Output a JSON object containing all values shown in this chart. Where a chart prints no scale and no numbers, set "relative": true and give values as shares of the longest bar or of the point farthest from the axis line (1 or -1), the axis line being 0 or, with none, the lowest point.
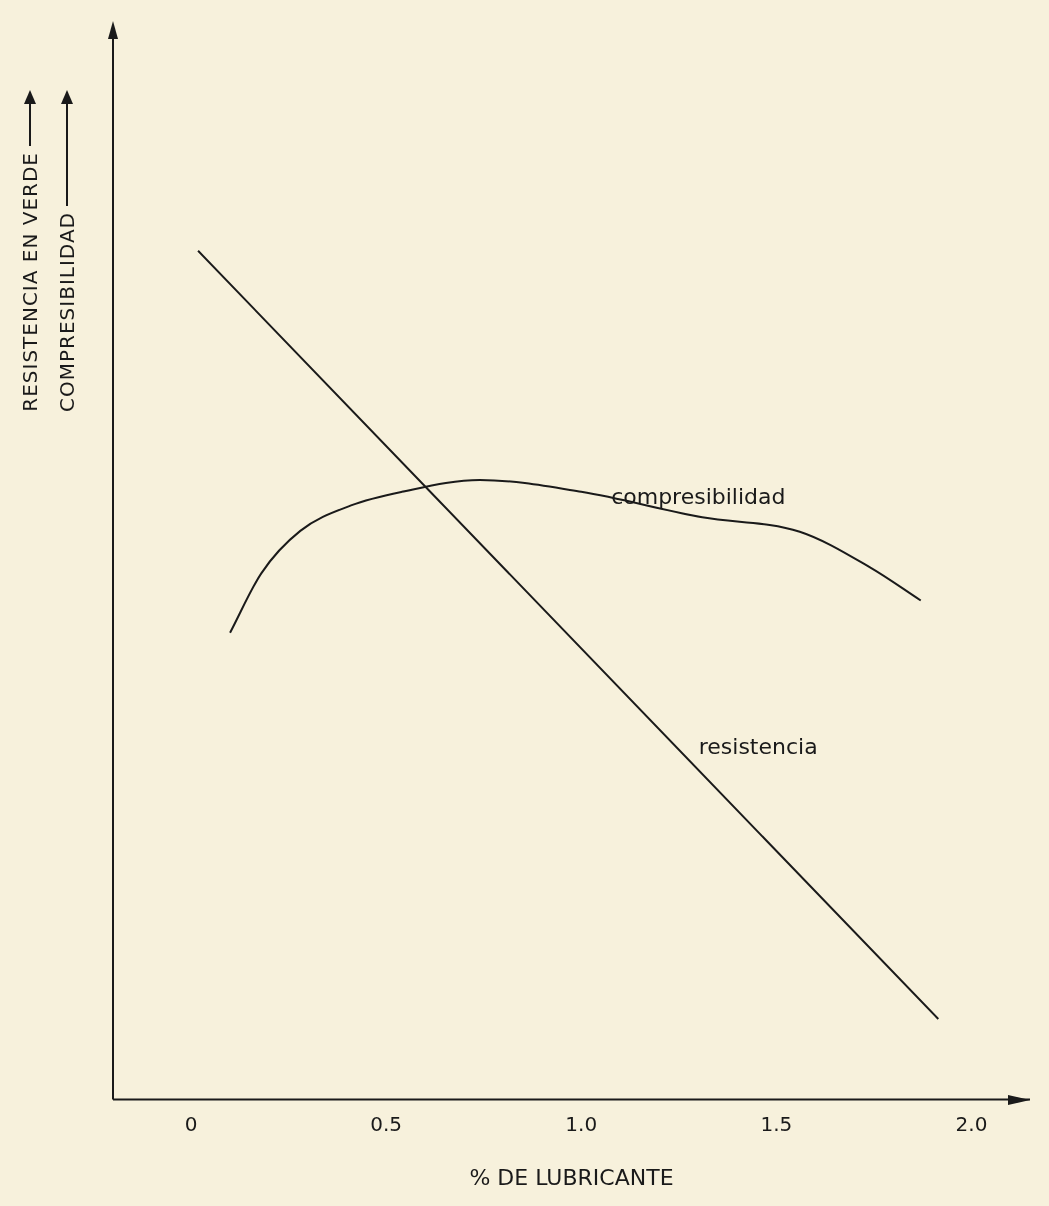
{
  "chart_data": {
    "type": "line",
    "relative": true,
    "xlabel": "% DE LUBRICANTE",
    "ylabel": "RESISTENCIA EN VERDE\nCOMPRESIBILIDAD",
    "xlim": [
      -0.2,
      2.15
    ],
    "xticks": [
      0,
      0.5,
      {
        "value": 1,
        "label": "1.0"
      },
      1.5,
      {
        "value": 2,
        "label": "2.0"
      }
    ],
    "grid": false,
    "legend": false,
    "marker": "none",
    "line_style": "solid",
    "series": [
      {
        "name": "compresibilidad",
        "color": "#1a1a1a",
        "x": [
          0.1,
          0.18,
          0.28,
          0.41,
          0.54,
          0.74,
          1.0,
          1.31,
          1.56,
          1.74,
          1.87
        ],
        "values": [
          0.55,
          0.62,
          0.67,
          0.7,
          0.716,
          0.73,
          0.716,
          0.686,
          0.669,
          0.627,
          0.588
        ]
      },
      {
        "name": "resistencia",
        "color": "#1a1a1a",
        "x": [
          0.018,
          1.915
        ],
        "values": [
          1,
          0.095
        ]
      }
    ]
  }
}
